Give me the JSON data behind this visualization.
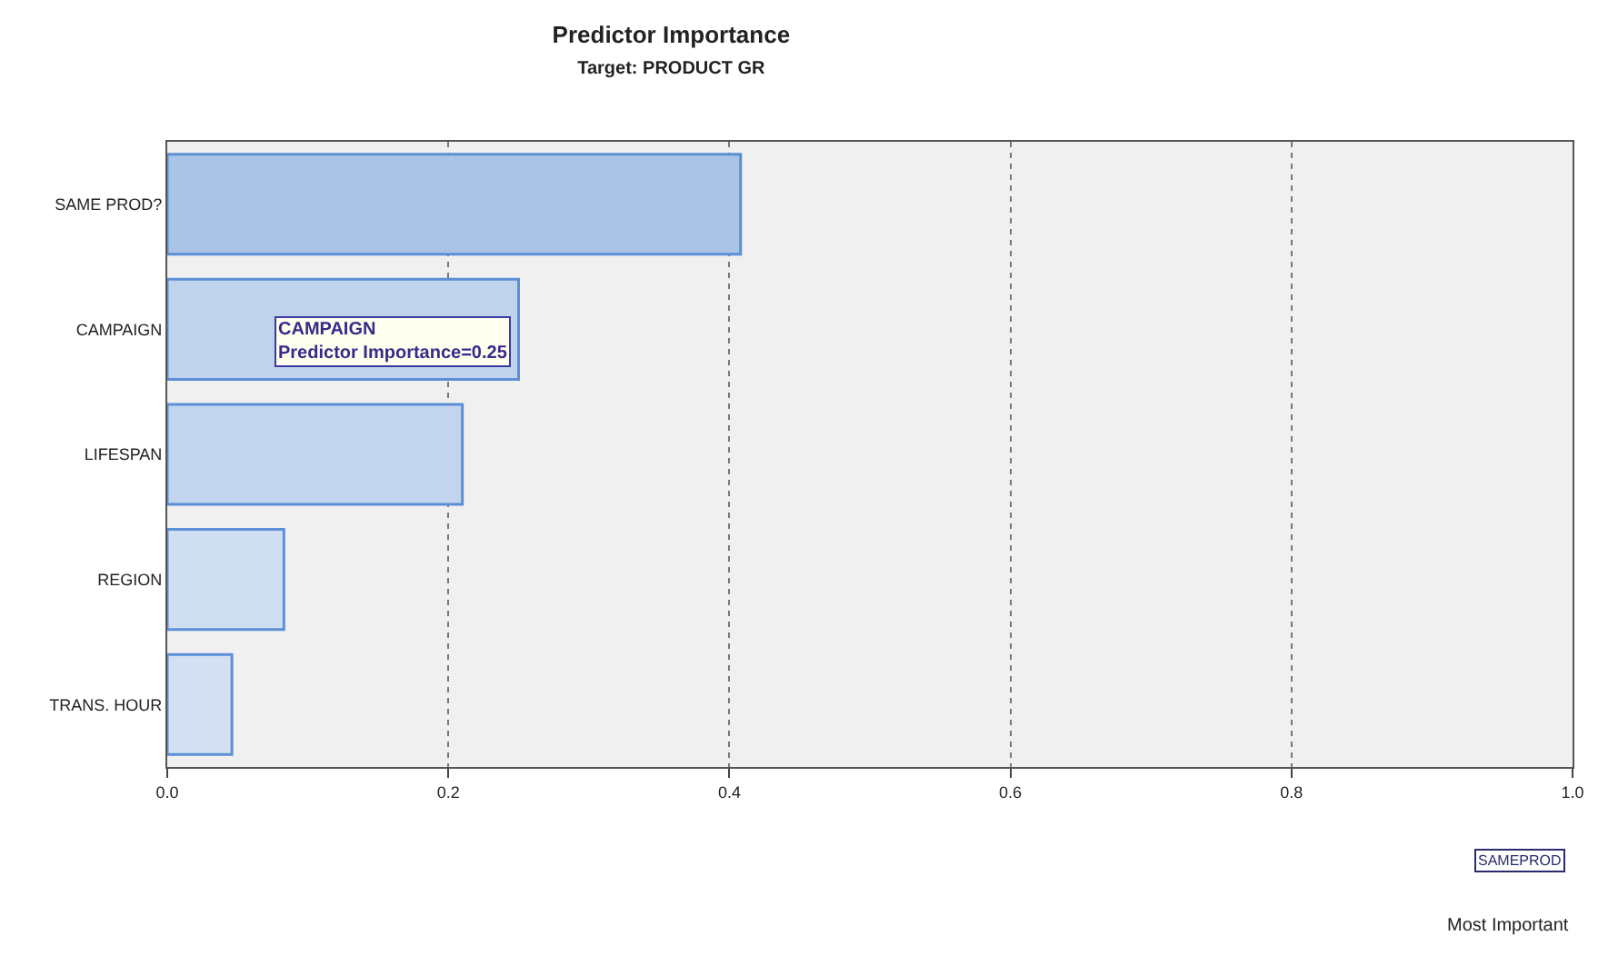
{
  "chart_data": {
    "type": "bar",
    "orientation": "horizontal",
    "title": "Predictor Importance",
    "subtitle": "Target: PRODUCT GR",
    "categories": [
      "SAME PROD?",
      "CAMPAIGN",
      "LIFESPAN",
      "REGION",
      "TRANS. HOUR"
    ],
    "values": [
      0.408,
      0.25,
      0.21,
      0.083,
      0.046
    ],
    "colors": [
      "#a9c4e6",
      "#c0d3ec",
      "#c3d5ee",
      "#d0def2",
      "#d3e0f2"
    ],
    "xlim": [
      0,
      1
    ],
    "xticks": [
      {
        "value": 0,
        "label": "0.0"
      },
      {
        "value": 0.2,
        "label": "0.2"
      },
      {
        "value": 0.4,
        "label": "0.4"
      },
      {
        "value": 0.6,
        "label": "0.6"
      },
      {
        "value": 0.8,
        "label": "0.8"
      },
      {
        "value": 1,
        "label": "1.0"
      }
    ],
    "grid": "x",
    "legend": false,
    "annotations": [
      {
        "text": "CAMPAIGN\nPredictor Importance=0.25",
        "x": 0.25,
        "y": "CAMPAIGN"
      },
      "SAMEPROD",
      "Most Important"
    ]
  }
}
